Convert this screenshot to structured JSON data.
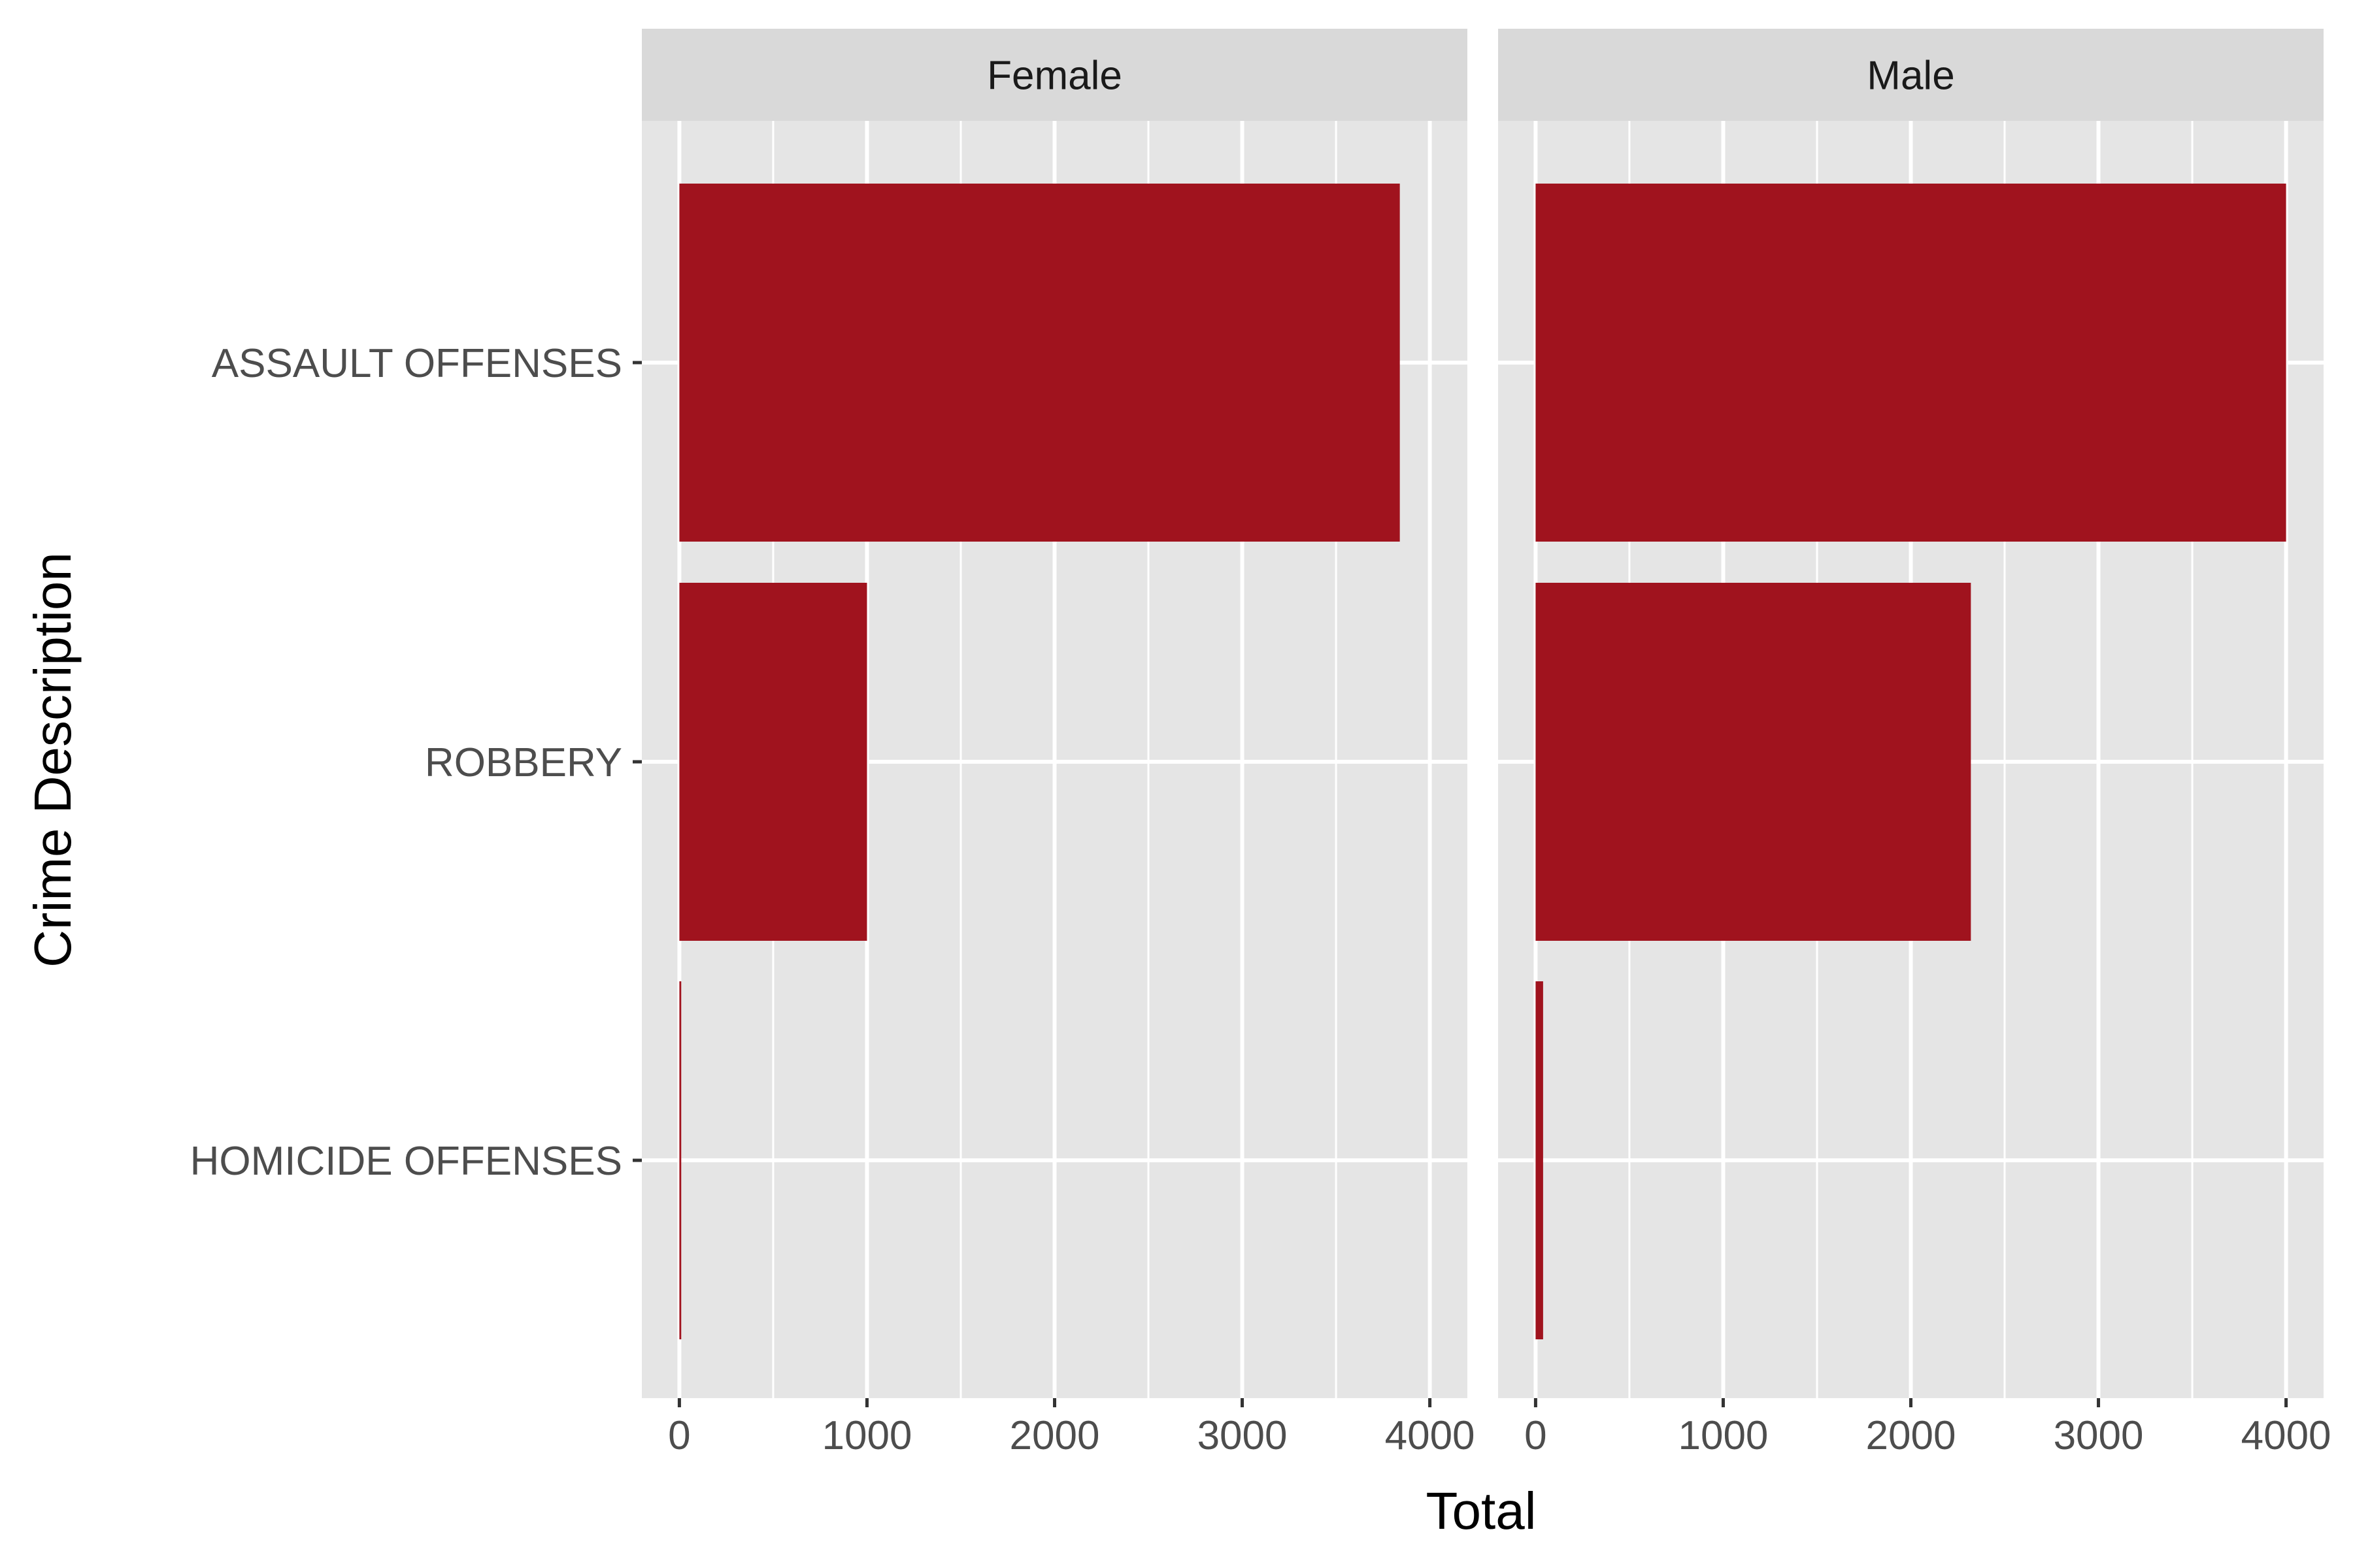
{
  "chart_data": {
    "type": "bar",
    "orientation": "horizontal",
    "facet_by": "sex",
    "xlabel": "Total",
    "ylabel": "Crime Description",
    "categories": [
      "ASSAULT OFFENSES",
      "ROBBERY",
      "HOMICIDE OFFENSES"
    ],
    "xlim": [
      -200,
      4200
    ],
    "x_ticks": [
      0,
      1000,
      2000,
      3000,
      4000
    ],
    "grid": true,
    "legend": "none",
    "bar_color": "#A0131E",
    "panel_background": "#E5E5E5",
    "strip_background": "#D9D9D9",
    "panels": [
      {
        "name": "Female",
        "values": [
          3840,
          1000,
          10
        ]
      },
      {
        "name": "Male",
        "values": [
          4000,
          2320,
          40
        ]
      }
    ]
  }
}
